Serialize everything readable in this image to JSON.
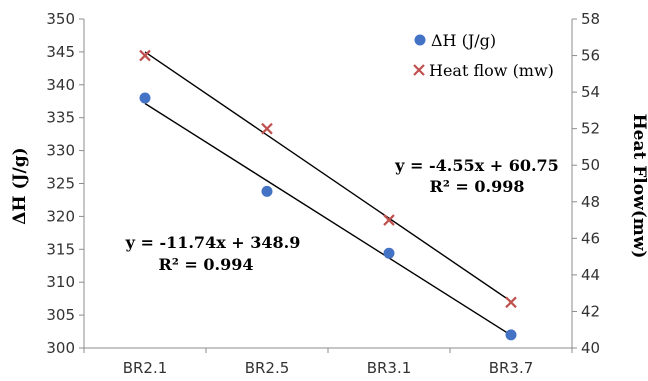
{
  "chart_data": {
    "type": "scatter",
    "categories": [
      "BR2.1",
      "BR2.5",
      "BR3.1",
      "BR3.7"
    ],
    "series": [
      {
        "name": "ΔH (J/g)",
        "axis": "left",
        "marker": "circle",
        "color": "#4472C4",
        "values": [
          338.0,
          323.8,
          314.4,
          302.0
        ]
      },
      {
        "name": "Heat flow (mw)",
        "axis": "right",
        "marker": "x",
        "color": "#C0504D",
        "values": [
          56.0,
          52.0,
          47.0,
          42.5
        ]
      }
    ],
    "trendlines": [
      {
        "series": "ΔH (J/g)",
        "slope": -11.74,
        "intercept": 348.9,
        "color": "#000000"
      },
      {
        "series": "Heat flow (mw)",
        "slope": -4.55,
        "intercept": 60.75,
        "color": "#000000"
      }
    ],
    "ylabel_left": "ΔH (J/g)",
    "ylabel_right": "Heat Flow(mw)",
    "ylim_left": [
      300,
      350
    ],
    "ylim_right": [
      40,
      58
    ],
    "yticks_left": [
      "300",
      "305",
      "310",
      "315",
      "320",
      "325",
      "330",
      "335",
      "340",
      "345",
      "350"
    ],
    "yticks_right": [
      "40",
      "42",
      "44",
      "46",
      "48",
      "50",
      "52",
      "54",
      "56",
      "58"
    ],
    "legend_position": "top-right",
    "grid": false,
    "annotations": [
      {
        "series": "Heat flow (mw)",
        "equation": "y = -4.55x + 60.75",
        "r2": "R² = 0.998"
      },
      {
        "series": "ΔH (J/g)",
        "equation": "y = -11.74x + 348.9",
        "r2": "R² = 0.994"
      }
    ]
  }
}
